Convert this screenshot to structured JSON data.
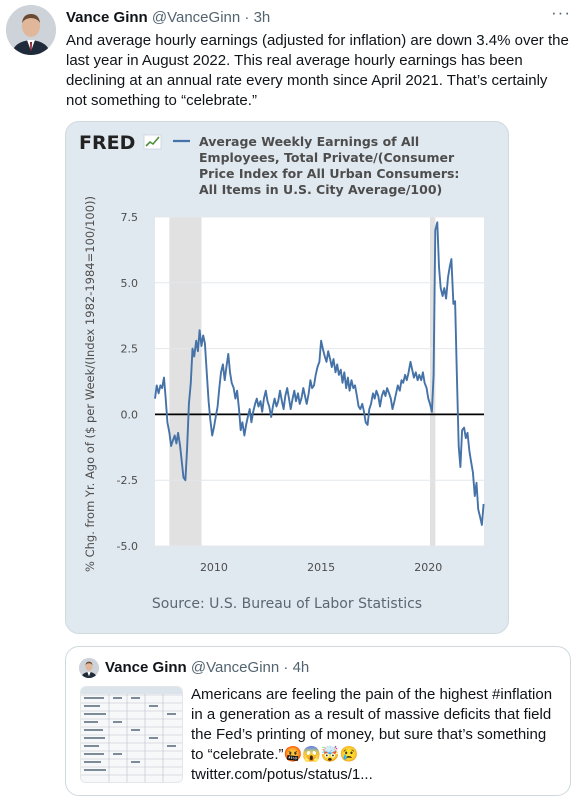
{
  "tweet": {
    "author_name": "Vance Ginn",
    "handle": "@VanceGinn",
    "separator": "·",
    "time": "3h",
    "more": "···",
    "text": "And average hourly earnings (adjusted for inflation) are down 3.4% over the last year in August 2022. This real average hourly earnings has been declining at an annual rate every month since April 2021. That’s certainly not something to “celebrate.”"
  },
  "chart_card": {
    "logo": "FRED",
    "source": "Source: U.S. Bureau of Labor Statistics"
  },
  "chart_data": {
    "type": "line",
    "title": "Average Weekly Earnings of All Employees, Total Private/(Consumer Price Index for All Urban Consumers: All Items in U.S. City Average/100)",
    "title_lines": [
      "Average Weekly Earnings of All",
      "Employees, Total Private/(Consumer",
      "Price Index for All Urban Consumers:",
      "All Items in U.S. City Average/100)"
    ],
    "ylabel": "% Chg. from Yr. Ago of ($ per Week/(Index 1982-1984=100/100))",
    "xlabel": "",
    "ylim": [
      -5.0,
      7.5
    ],
    "xlim": [
      2007.25,
      2022.6
    ],
    "y_ticks": [
      "7.5",
      "5.0",
      "2.5",
      "0.0",
      "-2.5",
      "-5.0"
    ],
    "y_tick_values": [
      7.5,
      5.0,
      2.5,
      0.0,
      -2.5,
      -5.0
    ],
    "x_ticks": [
      "2010",
      "2015",
      "2020"
    ],
    "x_tick_values": [
      2010,
      2015,
      2020
    ],
    "recessions": [
      [
        2007.92,
        2009.42
      ],
      [
        2020.08,
        2020.33
      ]
    ],
    "zero_line": 0.0,
    "grid": "horizontal",
    "line_color": "#4572a7",
    "series": [
      {
        "values": [
          [
            2007.25,
            0.6
          ],
          [
            2007.33,
            1.1
          ],
          [
            2007.42,
            0.8
          ],
          [
            2007.5,
            1.1
          ],
          [
            2007.58,
            1.0
          ],
          [
            2007.67,
            1.4
          ],
          [
            2007.75,
            0.6
          ],
          [
            2007.83,
            -0.3
          ],
          [
            2007.92,
            -0.7
          ],
          [
            2008.0,
            -1.2
          ],
          [
            2008.08,
            -1.0
          ],
          [
            2008.17,
            -0.8
          ],
          [
            2008.25,
            -1.1
          ],
          [
            2008.33,
            -0.7
          ],
          [
            2008.42,
            -1.2
          ],
          [
            2008.5,
            -1.8
          ],
          [
            2008.58,
            -2.4
          ],
          [
            2008.67,
            -2.5
          ],
          [
            2008.75,
            -1.3
          ],
          [
            2008.83,
            0.4
          ],
          [
            2008.92,
            1.2
          ],
          [
            2009.0,
            2.5
          ],
          [
            2009.08,
            2.2
          ],
          [
            2009.17,
            2.8
          ],
          [
            2009.25,
            2.4
          ],
          [
            2009.33,
            3.2
          ],
          [
            2009.42,
            2.6
          ],
          [
            2009.5,
            3.0
          ],
          [
            2009.58,
            2.7
          ],
          [
            2009.67,
            1.5
          ],
          [
            2009.75,
            0.5
          ],
          [
            2009.83,
            -0.2
          ],
          [
            2009.92,
            -0.8
          ],
          [
            2010.0,
            -0.5
          ],
          [
            2010.08,
            -0.1
          ],
          [
            2010.17,
            0.3
          ],
          [
            2010.25,
            1.0
          ],
          [
            2010.33,
            1.6
          ],
          [
            2010.42,
            1.9
          ],
          [
            2010.5,
            1.3
          ],
          [
            2010.58,
            1.8
          ],
          [
            2010.67,
            2.3
          ],
          [
            2010.75,
            1.6
          ],
          [
            2010.83,
            1.2
          ],
          [
            2010.92,
            1.0
          ],
          [
            2011.0,
            0.6
          ],
          [
            2011.08,
            0.9
          ],
          [
            2011.17,
            0.2
          ],
          [
            2011.25,
            -0.6
          ],
          [
            2011.33,
            -0.3
          ],
          [
            2011.42,
            -0.8
          ],
          [
            2011.5,
            -0.4
          ],
          [
            2011.58,
            -0.1
          ],
          [
            2011.67,
            0.2
          ],
          [
            2011.75,
            -0.3
          ],
          [
            2011.83,
            0.1
          ],
          [
            2011.92,
            0.4
          ],
          [
            2012.0,
            0.6
          ],
          [
            2012.08,
            0.3
          ],
          [
            2012.17,
            0.5
          ],
          [
            2012.25,
            0.1
          ],
          [
            2012.33,
            0.6
          ],
          [
            2012.42,
            0.9
          ],
          [
            2012.5,
            0.5
          ],
          [
            2012.58,
            0.3
          ],
          [
            2012.67,
            -0.1
          ],
          [
            2012.75,
            0.3
          ],
          [
            2012.83,
            0.6
          ],
          [
            2012.92,
            0.3
          ],
          [
            2013.0,
            0.5
          ],
          [
            2013.08,
            0.9
          ],
          [
            2013.17,
            0.5
          ],
          [
            2013.25,
            0.2
          ],
          [
            2013.33,
            0.7
          ],
          [
            2013.42,
            1.0
          ],
          [
            2013.5,
            0.6
          ],
          [
            2013.58,
            0.2
          ],
          [
            2013.67,
            0.6
          ],
          [
            2013.75,
            0.9
          ],
          [
            2013.83,
            0.5
          ],
          [
            2013.92,
            0.8
          ],
          [
            2014.0,
            0.4
          ],
          [
            2014.08,
            0.6
          ],
          [
            2014.17,
            1.0
          ],
          [
            2014.25,
            0.7
          ],
          [
            2014.33,
            0.4
          ],
          [
            2014.42,
            0.8
          ],
          [
            2014.5,
            1.3
          ],
          [
            2014.58,
            1.0
          ],
          [
            2014.67,
            1.1
          ],
          [
            2014.75,
            1.5
          ],
          [
            2014.83,
            1.8
          ],
          [
            2014.92,
            2.0
          ],
          [
            2015.0,
            2.8
          ],
          [
            2015.08,
            2.5
          ],
          [
            2015.17,
            2.2
          ],
          [
            2015.25,
            2.0
          ],
          [
            2015.33,
            2.4
          ],
          [
            2015.42,
            2.1
          ],
          [
            2015.5,
            1.8
          ],
          [
            2015.58,
            2.1
          ],
          [
            2015.67,
            1.6
          ],
          [
            2015.75,
            1.9
          ],
          [
            2015.83,
            1.5
          ],
          [
            2015.92,
            1.7
          ],
          [
            2016.0,
            1.2
          ],
          [
            2016.08,
            1.6
          ],
          [
            2016.17,
            1.0
          ],
          [
            2016.25,
            1.4
          ],
          [
            2016.33,
            0.9
          ],
          [
            2016.42,
            1.3
          ],
          [
            2016.5,
            1.0
          ],
          [
            2016.58,
            1.1
          ],
          [
            2016.67,
            0.7
          ],
          [
            2016.75,
            0.3
          ],
          [
            2016.83,
            0.2
          ],
          [
            2016.92,
            0.4
          ],
          [
            2017.0,
            0.1
          ],
          [
            2017.08,
            -0.3
          ],
          [
            2017.17,
            -0.4
          ],
          [
            2017.25,
            0.2
          ],
          [
            2017.33,
            0.4
          ],
          [
            2017.42,
            0.8
          ],
          [
            2017.5,
            0.6
          ],
          [
            2017.58,
            0.9
          ],
          [
            2017.67,
            0.7
          ],
          [
            2017.75,
            0.3
          ],
          [
            2017.83,
            0.7
          ],
          [
            2017.92,
            0.9
          ],
          [
            2018.0,
            0.7
          ],
          [
            2018.08,
            1.0
          ],
          [
            2018.17,
            0.8
          ],
          [
            2018.25,
            0.6
          ],
          [
            2018.33,
            0.2
          ],
          [
            2018.42,
            0.5
          ],
          [
            2018.5,
            0.8
          ],
          [
            2018.58,
            1.1
          ],
          [
            2018.67,
            0.9
          ],
          [
            2018.75,
            1.3
          ],
          [
            2018.83,
            1.2
          ],
          [
            2018.92,
            1.5
          ],
          [
            2019.0,
            1.3
          ],
          [
            2019.08,
            1.6
          ],
          [
            2019.17,
            2.0
          ],
          [
            2019.25,
            1.7
          ],
          [
            2019.33,
            1.4
          ],
          [
            2019.42,
            1.6
          ],
          [
            2019.5,
            1.3
          ],
          [
            2019.58,
            1.5
          ],
          [
            2019.67,
            1.3
          ],
          [
            2019.75,
            1.6
          ],
          [
            2019.83,
            1.2
          ],
          [
            2019.92,
            1.0
          ],
          [
            2020.0,
            0.6
          ],
          [
            2020.08,
            0.4
          ],
          [
            2020.17,
            0.1
          ],
          [
            2020.25,
            1.5
          ],
          [
            2020.33,
            7.0
          ],
          [
            2020.42,
            7.3
          ],
          [
            2020.5,
            5.6
          ],
          [
            2020.58,
            4.8
          ],
          [
            2020.67,
            4.5
          ],
          [
            2020.75,
            4.8
          ],
          [
            2020.83,
            4.4
          ],
          [
            2020.92,
            5.2
          ],
          [
            2021.0,
            5.6
          ],
          [
            2021.08,
            5.9
          ],
          [
            2021.17,
            4.2
          ],
          [
            2021.25,
            4.3
          ],
          [
            2021.33,
            1.6
          ],
          [
            2021.42,
            -1.2
          ],
          [
            2021.5,
            -2.0
          ],
          [
            2021.58,
            -0.6
          ],
          [
            2021.67,
            -0.5
          ],
          [
            2021.75,
            -0.9
          ],
          [
            2021.83,
            -0.7
          ],
          [
            2021.92,
            -1.4
          ],
          [
            2022.0,
            -1.8
          ],
          [
            2022.08,
            -2.2
          ],
          [
            2022.17,
            -3.1
          ],
          [
            2022.25,
            -2.6
          ],
          [
            2022.33,
            -3.6
          ],
          [
            2022.42,
            -3.9
          ],
          [
            2022.5,
            -4.2
          ],
          [
            2022.58,
            -3.4
          ]
        ]
      }
    ]
  },
  "quote": {
    "author_name": "Vance Ginn",
    "handle": "@VanceGinn",
    "separator": "·",
    "time": "4h",
    "text": "Americans are feeling the pain of the highest #inflation in a generation as a result of massive deficits that field the Fed’s printing of money, but sure that’s something to “celebrate.”🤬😱🤯😢",
    "link": "twitter.com/potus/status/1..."
  },
  "icons": {
    "avatar": "user-avatar",
    "more": "more-options-icon",
    "fred_logo": "fred-chart-icon"
  },
  "colors": {
    "chart_background": "#e1e9f0",
    "line": "#4572a7",
    "recession": "#e1e1e1",
    "text_secondary": "#536471"
  }
}
